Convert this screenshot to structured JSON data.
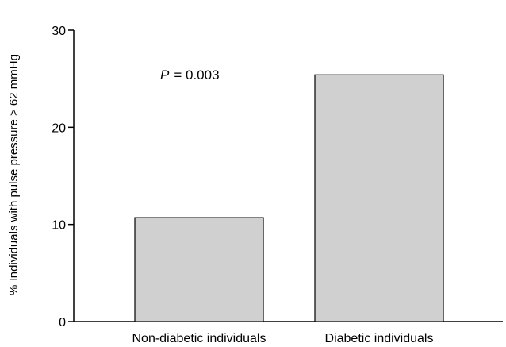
{
  "chart_data": {
    "type": "bar",
    "categories": [
      "Non-diabetic individuals",
      "Diabetic individuals"
    ],
    "values": [
      10.7,
      25.4
    ],
    "title": "",
    "xlabel": "",
    "ylabel": "% Individuals with pulse pressure > 62 mmHg",
    "ylim": [
      0,
      30
    ],
    "yticks": [
      0,
      10,
      20,
      30
    ],
    "grid": false,
    "bar_color": "#d0d0d0",
    "annotation": {
      "p_symbol": "P",
      "p_value": "= 0.003"
    }
  }
}
